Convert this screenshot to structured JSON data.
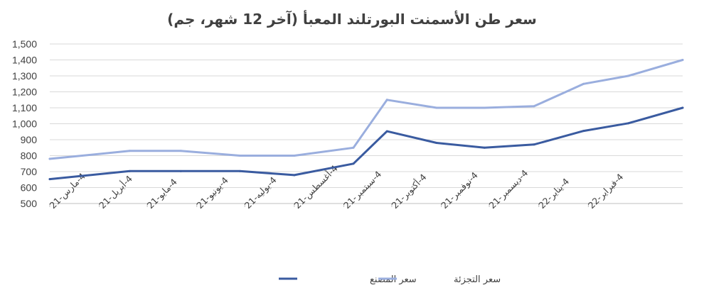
{
  "chart_data": {
    "type": "line",
    "title": "سعر طن الأسمنت البورتلند المعبأ (آخر 12 شهر، جم)",
    "xlabel": "",
    "ylabel": "",
    "categories": [
      "4-مارس-21",
      "4-أبريل-21",
      "4-مايو-21",
      "4-يونيو-21",
      "4-يوليه-21",
      "4-أغسطس-21",
      "4-سبتمبر-21",
      "4-أكتوبر-21",
      "4-نوفمبر-21",
      "4-ديسمبر-21",
      "4-يناير-22",
      "4-فبراير-22"
    ],
    "x_dates": [
      "2021-03-04",
      "2021-04-04",
      "2021-05-04",
      "2021-06-04",
      "2021-07-04",
      "2021-08-04",
      "2021-09-04",
      "2021-10-04",
      "2021-11-04",
      "2021-12-04",
      "2022-01-04",
      "2022-02-04"
    ],
    "ylim": [
      500,
      1500
    ],
    "yticks": [
      "500",
      "600",
      "700",
      "800",
      "900",
      "1,000",
      "1,100",
      "1,200",
      "1,300",
      "1,400",
      "1,500"
    ],
    "grid": true,
    "legend_position": "bottom",
    "series": [
      {
        "name": "سعر المصنع",
        "color": "#3a5ba0",
        "points": [
          {
            "x": "2021-03-04",
            "y": 653
          },
          {
            "x": "2021-04-23",
            "y": 703
          },
          {
            "x": "2021-05-25",
            "y": 703
          },
          {
            "x": "2021-07-01",
            "y": 703
          },
          {
            "x": "2021-08-04",
            "y": 678
          },
          {
            "x": "2021-09-10",
            "y": 750
          },
          {
            "x": "2021-10-01",
            "y": 953
          },
          {
            "x": "2021-11-01",
            "y": 880
          },
          {
            "x": "2021-12-01",
            "y": 850
          },
          {
            "x": "2022-01-01",
            "y": 870
          },
          {
            "x": "2022-02-01",
            "y": 955
          },
          {
            "x": "2022-03-01",
            "y": 1003
          },
          {
            "x": "2022-04-04",
            "y": 1100
          }
        ]
      },
      {
        "name": "سعر التجزئة",
        "color": "#9aaede",
        "points": [
          {
            "x": "2021-03-04",
            "y": 780
          },
          {
            "x": "2021-04-23",
            "y": 830
          },
          {
            "x": "2021-05-25",
            "y": 830
          },
          {
            "x": "2021-07-01",
            "y": 800
          },
          {
            "x": "2021-08-04",
            "y": 800
          },
          {
            "x": "2021-09-10",
            "y": 850
          },
          {
            "x": "2021-10-01",
            "y": 1150
          },
          {
            "x": "2021-11-01",
            "y": 1100
          },
          {
            "x": "2021-12-01",
            "y": 1100
          },
          {
            "x": "2022-01-01",
            "y": 1110
          },
          {
            "x": "2022-02-01",
            "y": 1250
          },
          {
            "x": "2022-03-01",
            "y": 1300
          },
          {
            "x": "2022-04-04",
            "y": 1400
          }
        ]
      }
    ]
  }
}
